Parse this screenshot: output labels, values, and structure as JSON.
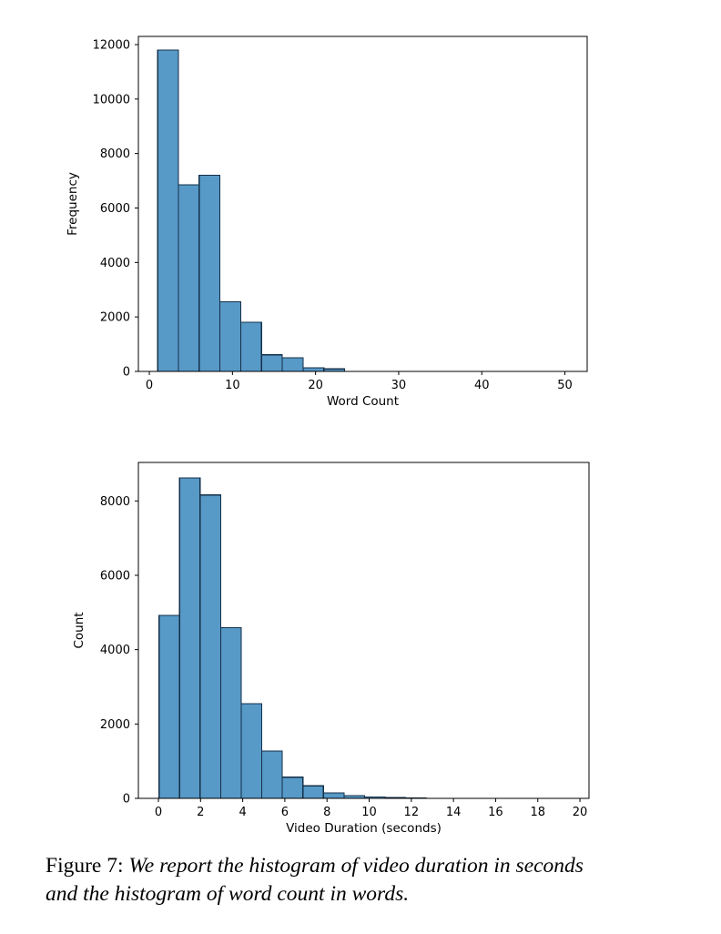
{
  "caption": {
    "label": "Figure 7:",
    "line1": "We report the histogram of video duration in seconds",
    "line2": "and the histogram of word count in words."
  },
  "chart_data": [
    {
      "type": "bar",
      "subtype": "histogram",
      "name": "word-count-histogram",
      "title": "",
      "xlabel": "Word Count",
      "ylabel": "Frequency",
      "xlim": [
        -1.32,
        52.68
      ],
      "ylim": [
        0,
        12300
      ],
      "xticks": [
        0,
        10,
        20,
        30,
        40,
        50
      ],
      "yticks": [
        0,
        2000,
        4000,
        6000,
        8000,
        10000,
        12000
      ],
      "grid": false,
      "legend": null,
      "bin_start": 1.0,
      "bin_width": 2.5,
      "bin_edges": [
        1.0,
        3.5,
        6.0,
        8.5,
        11.0,
        13.5,
        16.0,
        18.5,
        21.0,
        23.5
      ],
      "values": [
        11800,
        6850,
        7200,
        2560,
        1800,
        610,
        500,
        130,
        95
      ],
      "bar_fill": "#5799C7",
      "bar_edge": "#14304A"
    },
    {
      "type": "bar",
      "subtype": "histogram",
      "name": "video-duration-histogram",
      "title": "",
      "xlabel": "Video Duration (seconds)",
      "ylabel": "Count",
      "xlim": [
        -0.95,
        20.43
      ],
      "ylim": [
        0,
        9035
      ],
      "xticks": [
        0,
        2,
        4,
        6,
        8,
        10,
        12,
        14,
        16,
        18,
        20
      ],
      "yticks": [
        0,
        2000,
        4000,
        6000,
        8000
      ],
      "grid": false,
      "legend": null,
      "bin_start": 0.03,
      "bin_width": 0.975,
      "bin_edges": [
        0.03,
        1.005,
        1.98,
        2.955,
        3.93,
        4.905,
        5.88,
        6.855,
        7.83,
        8.805,
        9.78,
        10.755,
        11.73,
        12.705
      ],
      "values": [
        4920,
        8620,
        8160,
        4590,
        2550,
        1270,
        570,
        335,
        150,
        75,
        40,
        22,
        15
      ],
      "bar_fill": "#5799C7",
      "bar_edge": "#14304A"
    }
  ]
}
